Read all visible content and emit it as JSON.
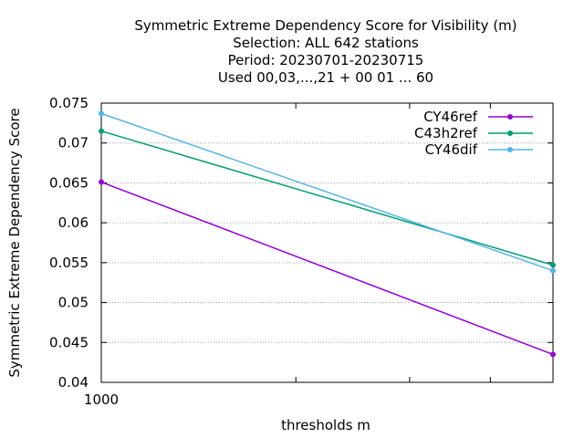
{
  "chart_data": {
    "type": "line",
    "title_lines": [
      "Symmetric Extreme Dependency Score  for Visibility (m)",
      "Selection: ALL    642 stations",
      "Period: 20230701-20230715",
      "Used  00,03,...,21  + 00 01 ... 60"
    ],
    "xlabel": "thresholds m",
    "ylabel": "Symmetric Extreme Dependency Score",
    "x": [
      1000,
      5000
    ],
    "xscale": "log",
    "xlim": [
      1000,
      5000
    ],
    "ylim": [
      0.04,
      0.075
    ],
    "yticks": [
      0.04,
      0.045,
      0.05,
      0.055,
      0.06,
      0.065,
      0.07,
      0.075
    ],
    "ytick_labels": [
      "0.04",
      "0.045",
      "0.05",
      "0.055",
      "0.06",
      "0.065",
      "0.07",
      "0.075"
    ],
    "xtick_labels": [
      {
        "value": 1000,
        "label": "1000"
      }
    ],
    "grid": true,
    "legend_position": "top-right",
    "series": [
      {
        "name": "CY46ref",
        "color": "#9400d3",
        "values": [
          0.0651,
          0.0435
        ]
      },
      {
        "name": "C43h2ref",
        "color": "#009e73",
        "values": [
          0.0715,
          0.0547
        ]
      },
      {
        "name": "CY46dif",
        "color": "#56b4e9",
        "values": [
          0.0737,
          0.054
        ]
      }
    ]
  }
}
